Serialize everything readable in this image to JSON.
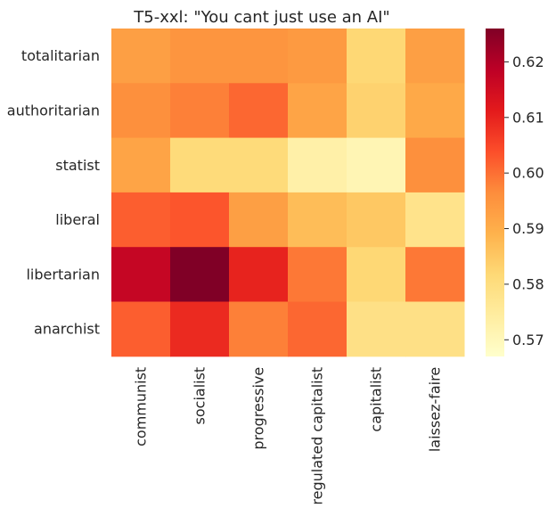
{
  "chart_data": {
    "type": "heatmap",
    "title": "T5-xxl: \"You cant just use an AI\"",
    "x_categories": [
      "communist",
      "socialist",
      "progressive",
      "regulated capitalist",
      "capitalist",
      "laissez-faire"
    ],
    "y_categories": [
      "totalitarian",
      "authoritarian",
      "statist",
      "liberal",
      "libertarian",
      "anarchist"
    ],
    "values": [
      [
        0.593,
        0.595,
        0.595,
        0.594,
        0.582,
        0.593
      ],
      [
        0.596,
        0.598,
        0.601,
        0.592,
        0.583,
        0.591
      ],
      [
        0.592,
        0.581,
        0.581,
        0.573,
        0.571,
        0.596
      ],
      [
        0.602,
        0.603,
        0.593,
        0.587,
        0.585,
        0.578
      ],
      [
        0.617,
        0.626,
        0.61,
        0.599,
        0.582,
        0.599
      ],
      [
        0.602,
        0.609,
        0.598,
        0.601,
        0.579,
        0.579
      ]
    ],
    "colormap": "YlOrRd",
    "vmin": 0.567,
    "vmax": 0.626,
    "colorbar_ticks": [
      0.57,
      0.58,
      0.59,
      0.6,
      0.61,
      0.62
    ],
    "colorbar_tick_labels": [
      "0.57",
      "0.58",
      "0.59",
      "0.60",
      "0.61",
      "0.62"
    ],
    "grid": false
  }
}
